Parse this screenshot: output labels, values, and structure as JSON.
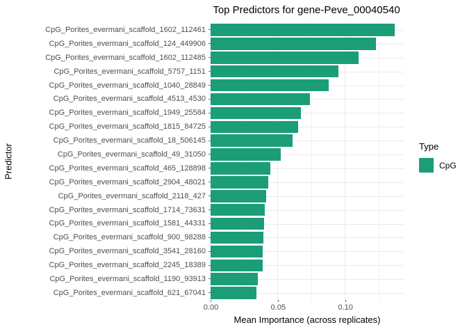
{
  "chart_data": {
    "type": "bar",
    "orientation": "horizontal",
    "title": "Top Predictors for gene-Peve_00040540",
    "xlabel": "Mean Importance (across replicates)",
    "ylabel": "Predictor",
    "categories": [
      "CpG_Porites_evermani_scaffold_1602_112461",
      "CpG_Porites_evermani_scaffold_124_449906",
      "CpG_Porites_evermani_scaffold_1602_112485",
      "CpG_Porites_evermani_scaffold_5757_1151",
      "CpG_Porites_evermani_scaffold_1040_28849",
      "CpG_Porites_evermani_scaffold_4513_4530",
      "CpG_Porites_evermani_scaffold_1949_25584",
      "CpG_Porites_evermani_scaffold_1815_84725",
      "CpG_Porites_evermani_scaffold_18_506145",
      "CpG_Porites_evermani_scaffold_49_31050",
      "CpG_Porites_evermani_scaffold_465_128898",
      "CpG_Porites_evermani_scaffold_2904_48021",
      "CpG_Porites_evermani_scaffold_2118_427",
      "CpG_Porites_evermani_scaffold_1714_73631",
      "CpG_Porites_evermani_scaffold_1581_44331",
      "CpG_Porites_evermani_scaffold_900_98288",
      "CpG_Porites_evermani_scaffold_3541_28160",
      "CpG_Porites_evermani_scaffold_2245_18389",
      "CpG_Porites_evermani_scaffold_1190_93913",
      "CpG_Porites_evermani_scaffold_621_67041"
    ],
    "values": [
      0.137,
      0.123,
      0.11,
      0.095,
      0.088,
      0.074,
      0.067,
      0.065,
      0.061,
      0.052,
      0.0445,
      0.043,
      0.0415,
      0.0405,
      0.0398,
      0.0392,
      0.0388,
      0.0388,
      0.035,
      0.0342
    ],
    "xlim": [
      0,
      0.1435
    ],
    "x_major_ticks": [
      0,
      0.05,
      0.1
    ],
    "x_tick_labels": [
      "0.00",
      "0.05",
      "0.10"
    ],
    "x_minor_ticks": [
      0.025,
      0.075,
      0.125
    ],
    "grid": true,
    "legend": {
      "position": "right",
      "title": "Type",
      "items": [
        {
          "label": "CpG",
          "color": "#1b9e77"
        }
      ]
    },
    "colors": {
      "bar": "#1b9e77",
      "grid_major": "#e9e9e9",
      "grid_minor": "#f3f3f3",
      "axis_text": "#4d4d4d",
      "title_text": "#000000"
    }
  }
}
